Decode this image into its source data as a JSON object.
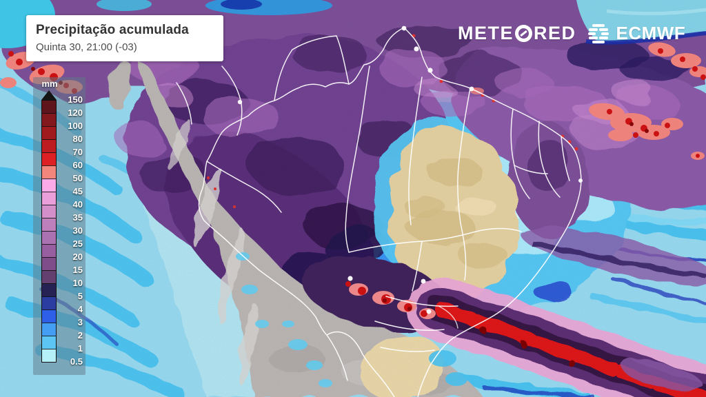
{
  "header": {
    "title": "Precipitação acumulada",
    "datetime": "Quinta 30, 21:00 (-03)"
  },
  "branding": {
    "meteored_left": "METE",
    "meteored_right": "RED",
    "ecmwf": "ECMWF",
    "meteored_o_icon": "swirl-o-icon",
    "ecmwf_icon": "ecmwf-globe-icon"
  },
  "legend": {
    "unit": "mm",
    "stops": [
      "150",
      "120",
      "100",
      "80",
      "70",
      "60",
      "50",
      "45",
      "40",
      "35",
      "30",
      "25",
      "20",
      "15",
      "10",
      "5",
      "4",
      "3",
      "2",
      "1",
      "0.5"
    ],
    "cell_colors": [
      "#5e151b",
      "#83181d",
      "#a01b1e",
      "#bd1d20",
      "#dc2023",
      "#f2857c",
      "#fcaae8",
      "#eb9fda",
      "#d28fc9",
      "#bd80bd",
      "#aa72b1",
      "#975fa0",
      "#7f4e8a",
      "#644071",
      "#272254",
      "#2b3da0",
      "#2d5fe8",
      "#449ef3",
      "#5cc5f4",
      "#b5f0f8"
    ]
  },
  "map_palette": {
    "ocean": "#96d9ee",
    "ocean_streak_cyan": "#44c1ef",
    "ocean_deep_blue": "#1b2fb8",
    "rain_purple": "#7c4f96",
    "rain_dark_purple": "#3a1d58",
    "rain_magenta": "#a76ab9",
    "rain_pink": "#e9a6d4",
    "rain_red": "#dd1212",
    "rain_salmon": "#f2857c",
    "dry_land_tan": "#e3d09f",
    "dry_land_gray": "#b9b5b1",
    "border_lines": "#ffffff"
  }
}
